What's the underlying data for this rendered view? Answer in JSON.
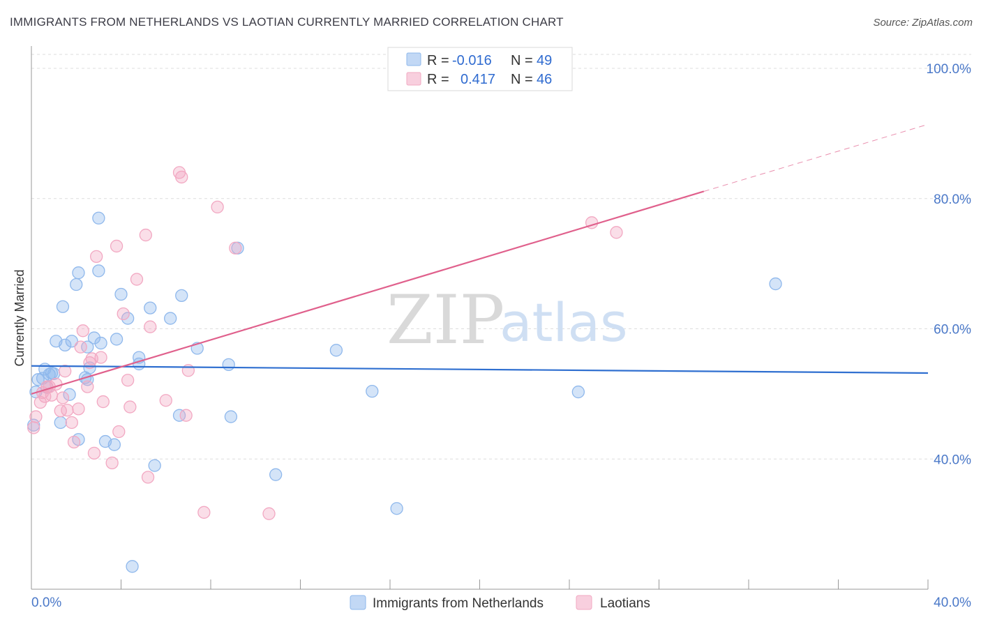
{
  "header": {
    "title": "IMMIGRANTS FROM NETHERLANDS VS LAOTIAN CURRENTLY MARRIED CORRELATION CHART",
    "source": "Source: ZipAtlas.com"
  },
  "watermark": {
    "zip": "ZIP",
    "atlas": "atlas"
  },
  "stats": {
    "rows": [
      {
        "r_label": "R = ",
        "r_value": "-0.016",
        "n_label": "N = ",
        "n_value": "49",
        "color": "#8fb8ec"
      },
      {
        "r_label": "R = ",
        "r_value": "0.417",
        "n_label": "N = ",
        "n_value": "46",
        "color": "#f2a8c2"
      }
    ]
  },
  "legend": {
    "items": [
      {
        "label": "Immigrants from Netherlands",
        "color": "#8fb8ec"
      },
      {
        "label": "Laotians",
        "color": "#f2a8c2"
      }
    ]
  },
  "chart_data": {
    "type": "scatter",
    "title": "IMMIGRANTS FROM NETHERLANDS VS LAOTIAN CURRENTLY MARRIED CORRELATION CHART",
    "xlabel": "",
    "ylabel": "Currently Married",
    "xlim": [
      0,
      40
    ],
    "ylim": [
      20,
      103
    ],
    "x_tick_labels": [
      {
        "value": 0,
        "label": "0.0%"
      },
      {
        "value": 40,
        "label": "40.0%"
      }
    ],
    "y_tick_labels": [
      {
        "value": 40,
        "label": "40.0%"
      },
      {
        "value": 60,
        "label": "60.0%"
      },
      {
        "value": 80,
        "label": "80.0%"
      },
      {
        "value": 100,
        "label": "100.0%"
      }
    ],
    "grid": true,
    "legend_position": "bottom-center",
    "series": [
      {
        "name": "Immigrants from Netherlands",
        "color": "#8fb8ec",
        "line_color": "#2f6fd0",
        "trend": {
          "x": [
            0,
            40
          ],
          "y": [
            54.3,
            53.2
          ],
          "dashed_to": null
        },
        "points": [
          [
            0.1,
            45.2
          ],
          [
            0.2,
            50.3
          ],
          [
            0.3,
            52.2
          ],
          [
            0.5,
            52.4
          ],
          [
            0.6,
            53.8
          ],
          [
            0.7,
            51.0
          ],
          [
            0.8,
            53.0
          ],
          [
            0.9,
            53.2
          ],
          [
            1.1,
            58.1
          ],
          [
            1.3,
            45.6
          ],
          [
            1.4,
            63.4
          ],
          [
            1.5,
            57.5
          ],
          [
            1.7,
            49.9
          ],
          [
            1.8,
            58.1
          ],
          [
            2.0,
            66.8
          ],
          [
            2.1,
            43.0
          ],
          [
            2.1,
            68.6
          ],
          [
            2.4,
            52.5
          ],
          [
            2.5,
            57.2
          ],
          [
            2.5,
            52.2
          ],
          [
            2.6,
            54.0
          ],
          [
            2.8,
            58.6
          ],
          [
            3.0,
            77.0
          ],
          [
            3.0,
            68.9
          ],
          [
            3.1,
            57.8
          ],
          [
            3.3,
            42.7
          ],
          [
            3.7,
            42.2
          ],
          [
            3.8,
            58.4
          ],
          [
            4.0,
            65.3
          ],
          [
            4.3,
            61.6
          ],
          [
            4.5,
            23.5
          ],
          [
            4.8,
            55.6
          ],
          [
            4.8,
            54.6
          ],
          [
            5.3,
            63.2
          ],
          [
            5.5,
            39.0
          ],
          [
            6.2,
            61.6
          ],
          [
            6.6,
            46.7
          ],
          [
            6.7,
            65.1
          ],
          [
            7.4,
            57.0
          ],
          [
            8.8,
            54.5
          ],
          [
            8.9,
            46.5
          ],
          [
            9.2,
            72.4
          ],
          [
            10.9,
            37.6
          ],
          [
            13.6,
            56.7
          ],
          [
            15.2,
            50.4
          ],
          [
            16.3,
            32.4
          ],
          [
            24.4,
            50.3
          ],
          [
            33.2,
            66.9
          ],
          [
            1.0,
            53.1
          ]
        ]
      },
      {
        "name": "Laotians",
        "color": "#f2a8c2",
        "line_color": "#e0608c",
        "trend": {
          "x": [
            0,
            30.0
          ],
          "y": [
            50.0,
            81.1
          ],
          "dashed_to": {
            "x": 40,
            "y": 91.4
          }
        },
        "points": [
          [
            0.1,
            44.8
          ],
          [
            0.2,
            46.5
          ],
          [
            0.4,
            48.7
          ],
          [
            0.5,
            50.2
          ],
          [
            0.6,
            49.6
          ],
          [
            0.7,
            51.1
          ],
          [
            0.8,
            51.1
          ],
          [
            0.9,
            49.8
          ],
          [
            1.1,
            51.5
          ],
          [
            1.3,
            47.4
          ],
          [
            1.4,
            49.4
          ],
          [
            1.5,
            53.5
          ],
          [
            1.6,
            47.5
          ],
          [
            1.8,
            45.6
          ],
          [
            1.9,
            42.6
          ],
          [
            2.1,
            47.7
          ],
          [
            2.3,
            59.7
          ],
          [
            2.2,
            57.2
          ],
          [
            2.5,
            51.1
          ],
          [
            2.6,
            54.8
          ],
          [
            2.7,
            55.4
          ],
          [
            2.8,
            40.9
          ],
          [
            2.9,
            71.1
          ],
          [
            3.1,
            55.6
          ],
          [
            3.2,
            48.8
          ],
          [
            3.6,
            39.4
          ],
          [
            3.8,
            72.7
          ],
          [
            3.9,
            44.2
          ],
          [
            4.1,
            62.3
          ],
          [
            4.3,
            52.1
          ],
          [
            4.4,
            48.0
          ],
          [
            4.7,
            67.6
          ],
          [
            5.1,
            74.4
          ],
          [
            5.2,
            37.2
          ],
          [
            5.3,
            60.3
          ],
          [
            6.0,
            49.0
          ],
          [
            6.6,
            84.0
          ],
          [
            6.7,
            83.3
          ],
          [
            6.9,
            46.7
          ],
          [
            7.0,
            53.6
          ],
          [
            7.7,
            31.8
          ],
          [
            8.3,
            78.7
          ],
          [
            9.1,
            72.4
          ],
          [
            10.6,
            31.6
          ],
          [
            25.0,
            76.3
          ],
          [
            26.1,
            74.8
          ]
        ]
      }
    ]
  }
}
